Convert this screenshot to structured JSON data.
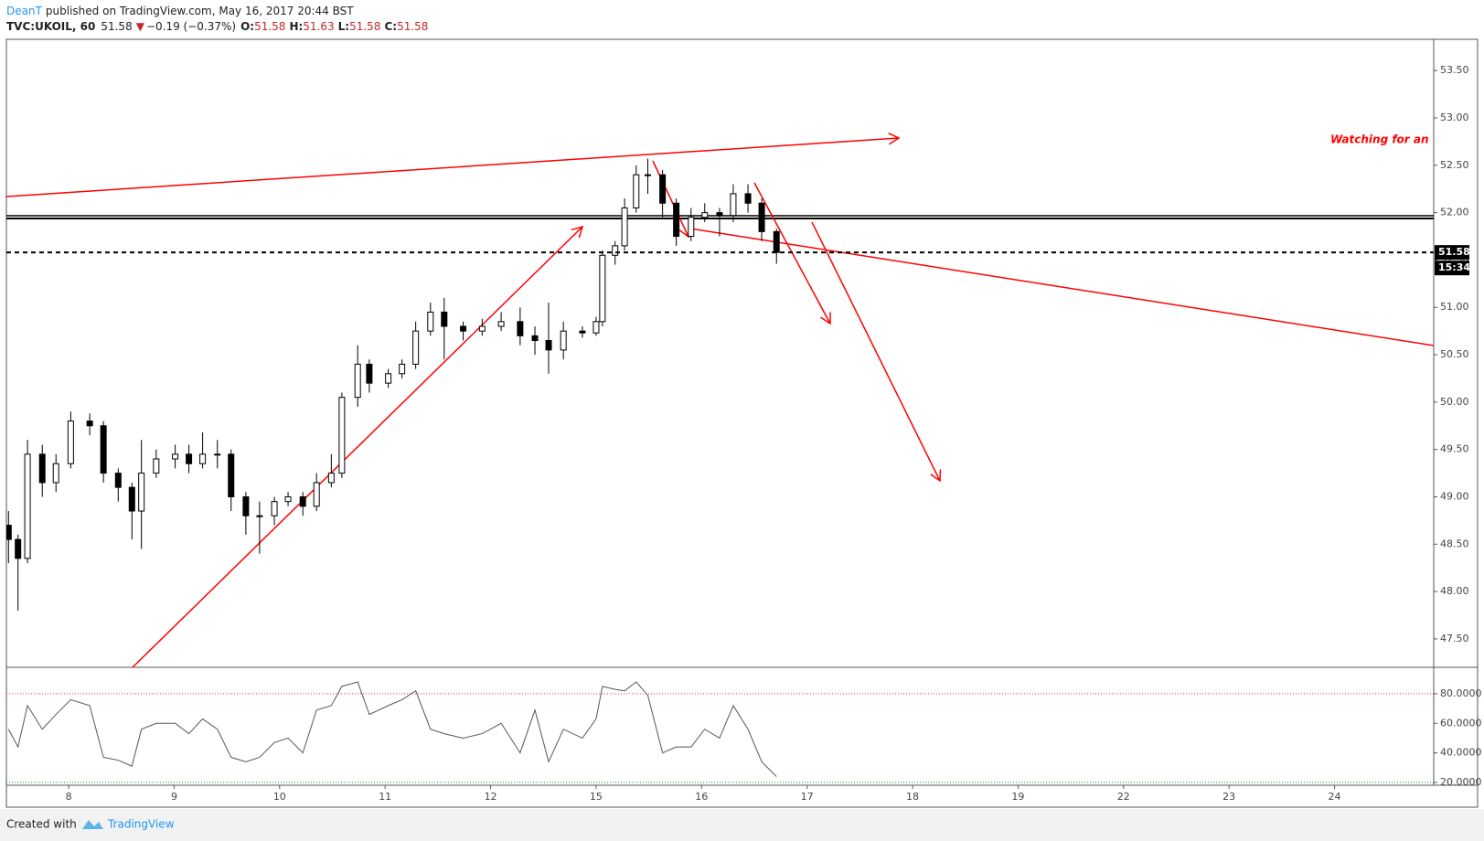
{
  "header": {
    "author": "DeanT",
    "published": "published on TradingView.com, May 16, 2017 20:44 BST",
    "symbol": "TVC:UKOIL, 60",
    "last": "51.58",
    "direction": "▼",
    "change": "−0.19 (−0.37%)",
    "ohlc": [
      {
        "label": "O:",
        "value": "51.58"
      },
      {
        "label": "H:",
        "value": "51.63"
      },
      {
        "label": "L:",
        "value": "51.58"
      },
      {
        "label": "C:",
        "value": "51.58"
      }
    ]
  },
  "chart_data": [
    {
      "type": "candlestick",
      "annotation": "Watching for an",
      "last_price": 51.58,
      "countdown": "15:34",
      "up_color": "#ffffff",
      "down_color": "#000000",
      "xlim": [
        -0.59,
        12.94
      ],
      "xticks": [
        {
          "value": 0,
          "label": "8"
        },
        {
          "value": 1,
          "label": "9"
        },
        {
          "value": 2,
          "label": "10"
        },
        {
          "value": 3,
          "label": "11"
        },
        {
          "value": 4,
          "label": "12"
        },
        {
          "value": 5,
          "label": "15"
        },
        {
          "value": 6,
          "label": "16"
        },
        {
          "value": 7,
          "label": "17"
        },
        {
          "value": 8,
          "label": "18"
        },
        {
          "value": 9,
          "label": "19"
        },
        {
          "value": 10,
          "label": "22"
        },
        {
          "value": 11,
          "label": "23"
        },
        {
          "value": 12,
          "label": "24"
        }
      ],
      "ylim": [
        47.2,
        53.83
      ],
      "yticks": [
        {
          "value": 47.5,
          "label": "47.50"
        },
        {
          "value": 48,
          "label": "48.00"
        },
        {
          "value": 48.5,
          "label": "48.50"
        },
        {
          "value": 49,
          "label": "49.00"
        },
        {
          "value": 49.5,
          "label": "49.50"
        },
        {
          "value": 50,
          "label": "50.00"
        },
        {
          "value": 50.5,
          "label": "50.50"
        },
        {
          "value": 51,
          "label": "51.00"
        },
        {
          "value": 51.5,
          "label": "51.50"
        },
        {
          "value": 52,
          "label": "52.00"
        },
        {
          "value": 52.5,
          "label": "52.50"
        },
        {
          "value": 53,
          "label": "53.00"
        },
        {
          "value": 53.5,
          "label": "53.50"
        }
      ],
      "x": [
        -0.57,
        -0.48,
        -0.39,
        -0.25,
        -0.12,
        0.02,
        0.2,
        0.33,
        0.47,
        0.6,
        0.69,
        0.83,
        1.01,
        1.14,
        1.27,
        1.41,
        1.54,
        1.68,
        1.81,
        1.95,
        2.08,
        2.22,
        2.35,
        2.49,
        2.59,
        2.74,
        2.85,
        3.03,
        3.16,
        3.29,
        3.43,
        3.56,
        3.74,
        3.92,
        4.1,
        4.28,
        4.42,
        4.55,
        4.69,
        4.87,
        5.0,
        5.06,
        5.18,
        5.27,
        5.38,
        5.49,
        5.63,
        5.76,
        5.9,
        6.03,
        6.17,
        6.3,
        6.44,
        6.57,
        6.71
      ],
      "open": [
        48.7,
        48.55,
        48.35,
        49.45,
        49.15,
        49.35,
        49.8,
        49.75,
        49.25,
        49.1,
        48.85,
        49.25,
        49.4,
        49.45,
        49.35,
        49.45,
        49.45,
        49.0,
        48.8,
        48.8,
        48.95,
        49.0,
        48.9,
        49.15,
        49.25,
        50.05,
        50.4,
        50.2,
        50.3,
        50.4,
        50.75,
        50.95,
        50.8,
        50.75,
        50.8,
        50.85,
        50.7,
        50.65,
        50.55,
        50.75,
        50.73,
        50.85,
        51.55,
        51.65,
        52.05,
        52.4,
        52.4,
        52.1,
        51.75,
        51.95,
        52.0,
        51.97,
        52.2,
        52.1,
        51.8
      ],
      "high": [
        48.85,
        48.6,
        49.6,
        49.55,
        49.45,
        49.9,
        49.88,
        49.8,
        49.3,
        49.15,
        49.6,
        49.5,
        49.55,
        49.55,
        49.68,
        49.6,
        49.5,
        49.05,
        48.95,
        49.0,
        49.05,
        49.05,
        49.25,
        49.45,
        50.1,
        50.6,
        50.45,
        50.35,
        50.45,
        50.85,
        51.05,
        51.1,
        50.85,
        50.88,
        50.95,
        51.0,
        50.8,
        51.05,
        50.85,
        50.8,
        50.9,
        51.6,
        51.7,
        52.15,
        52.5,
        52.57,
        52.45,
        52.15,
        52.05,
        52.1,
        52.05,
        52.3,
        52.3,
        52.15,
        51.83
      ],
      "low": [
        48.3,
        47.8,
        48.3,
        49.0,
        49.05,
        49.3,
        49.65,
        49.15,
        48.95,
        48.55,
        48.45,
        49.2,
        49.3,
        49.25,
        49.3,
        49.3,
        48.85,
        48.6,
        48.4,
        48.7,
        48.9,
        48.8,
        48.85,
        49.1,
        49.2,
        49.95,
        50.1,
        50.15,
        50.25,
        50.35,
        50.7,
        50.45,
        50.65,
        50.7,
        50.75,
        50.6,
        50.5,
        50.3,
        50.45,
        50.68,
        50.7,
        50.8,
        51.45,
        51.6,
        52.0,
        52.2,
        51.95,
        51.65,
        51.7,
        51.9,
        51.75,
        51.9,
        52.0,
        51.7,
        51.46
      ],
      "close": [
        48.55,
        48.35,
        49.45,
        49.15,
        49.35,
        49.8,
        49.75,
        49.25,
        49.1,
        48.85,
        49.25,
        49.4,
        49.45,
        49.35,
        49.45,
        49.45,
        49.0,
        48.8,
        48.8,
        48.95,
        49.0,
        48.9,
        49.15,
        49.25,
        50.05,
        50.4,
        50.2,
        50.3,
        50.4,
        50.75,
        50.95,
        50.8,
        50.75,
        50.8,
        50.85,
        50.7,
        50.65,
        50.55,
        50.75,
        50.73,
        50.85,
        51.55,
        51.65,
        52.05,
        52.4,
        52.4,
        52.1,
        51.75,
        51.95,
        52.0,
        51.97,
        52.2,
        52.1,
        51.8,
        51.58
      ]
    },
    {
      "type": "line",
      "xlim": [
        -0.59,
        12.94
      ],
      "ylim": [
        18.1,
        97.9
      ],
      "yticks": [
        {
          "value": 20,
          "label": "20.0000"
        },
        {
          "value": 40,
          "label": "40.0000"
        },
        {
          "value": 60,
          "label": "60.0000"
        },
        {
          "value": 80,
          "label": "80.0000"
        }
      ],
      "x": [
        -0.57,
        -0.48,
        -0.39,
        -0.25,
        -0.12,
        0.02,
        0.2,
        0.33,
        0.47,
        0.6,
        0.69,
        0.83,
        1.01,
        1.14,
        1.27,
        1.41,
        1.54,
        1.68,
        1.81,
        1.95,
        2.08,
        2.22,
        2.35,
        2.49,
        2.59,
        2.74,
        2.85,
        3.03,
        3.16,
        3.29,
        3.43,
        3.56,
        3.74,
        3.92,
        4.1,
        4.28,
        4.42,
        4.55,
        4.69,
        4.87,
        5.0,
        5.06,
        5.18,
        5.27,
        5.38,
        5.49,
        5.63,
        5.76,
        5.9,
        6.03,
        6.17,
        6.3,
        6.44,
        6.57,
        6.71
      ],
      "series": [
        {
          "color": "#555555",
          "values": [
            56,
            44,
            72,
            56,
            66,
            76,
            72,
            37,
            35,
            31,
            56,
            60,
            60,
            53,
            63,
            56,
            37,
            34,
            37,
            47,
            50,
            40,
            69,
            72,
            85,
            88,
            66,
            72,
            76,
            82,
            56,
            53,
            50,
            53,
            60,
            40,
            69,
            34,
            56,
            50,
            63,
            85,
            83,
            82,
            88,
            79,
            40,
            44,
            44,
            56,
            50,
            72,
            56,
            34,
            24
          ]
        }
      ]
    }
  ],
  "footer": {
    "created": "Created with",
    "brand": "TradingView"
  }
}
